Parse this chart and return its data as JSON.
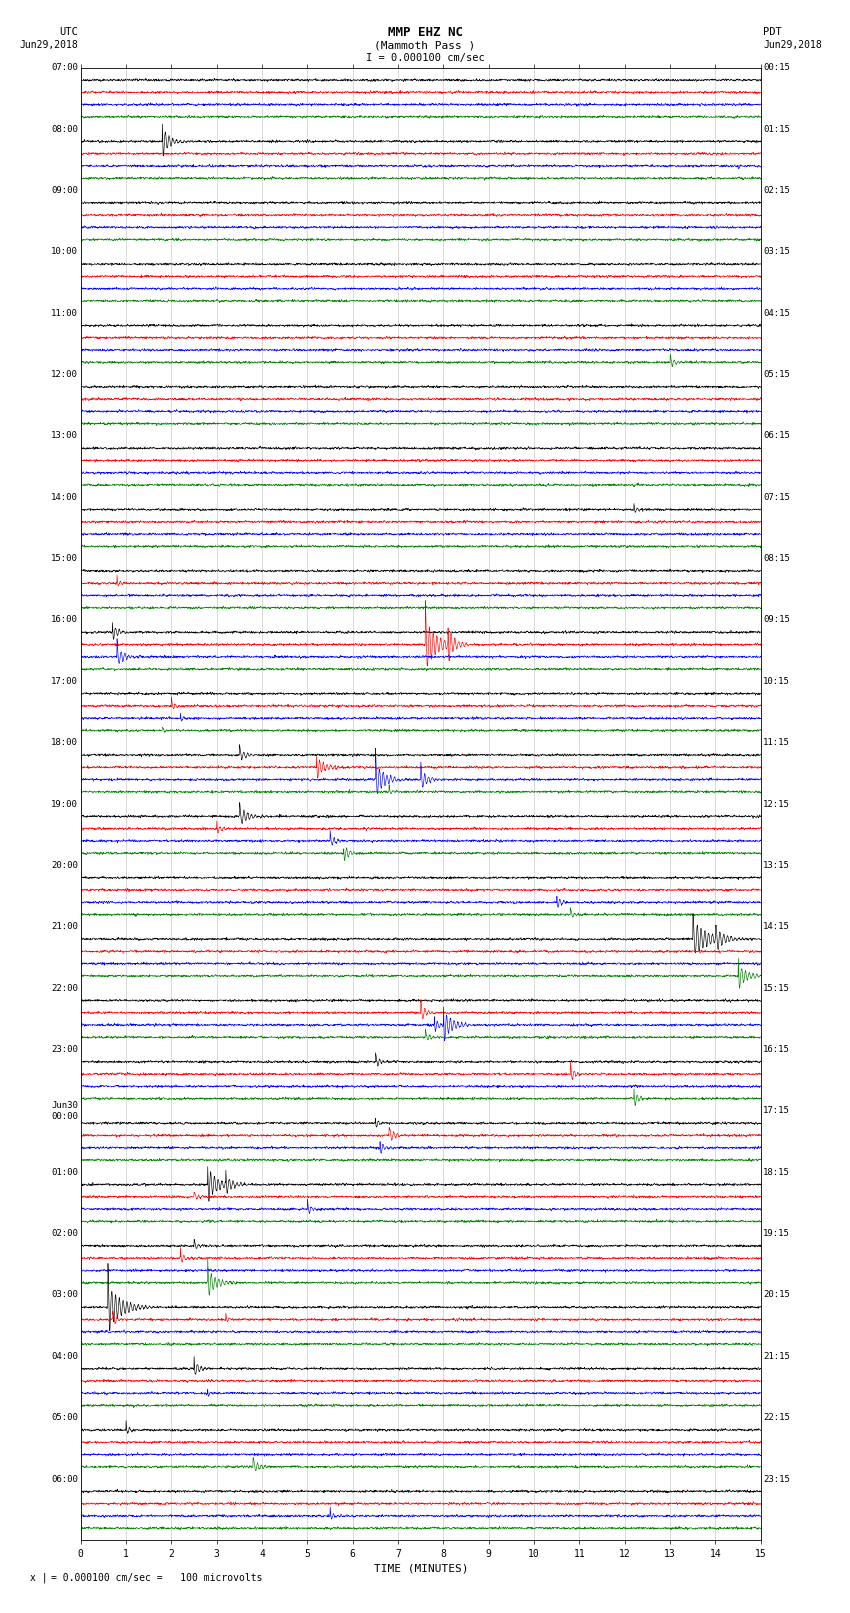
{
  "title_line1": "MMP EHZ NC",
  "title_line2": "(Mammoth Pass )",
  "scale_text": "I = 0.000100 cm/sec",
  "utc_label": "UTC",
  "utc_date": "Jun29,2018",
  "pdt_label": "PDT",
  "pdt_date": "Jun29,2018",
  "left_times_utc": [
    "07:00",
    "08:00",
    "09:00",
    "10:00",
    "11:00",
    "12:00",
    "13:00",
    "14:00",
    "15:00",
    "16:00",
    "17:00",
    "18:00",
    "19:00",
    "20:00",
    "21:00",
    "22:00",
    "23:00",
    "Jun30\n00:00",
    "01:00",
    "02:00",
    "03:00",
    "04:00",
    "05:00",
    "06:00"
  ],
  "right_times_pdt": [
    "00:15",
    "01:15",
    "02:15",
    "03:15",
    "04:15",
    "05:15",
    "06:15",
    "07:15",
    "08:15",
    "09:15",
    "10:15",
    "11:15",
    "12:15",
    "13:15",
    "14:15",
    "15:15",
    "16:15",
    "17:15",
    "18:15",
    "19:15",
    "20:15",
    "21:15",
    "22:15",
    "23:15"
  ],
  "xlabel": "TIME (MINUTES)",
  "footnote": "= 0.000100 cm/sec =   100 microvolts",
  "num_rows": 24,
  "traces_per_row": 4,
  "colors": [
    "black",
    "red",
    "blue",
    "green"
  ],
  "xlim": [
    0,
    15
  ],
  "xticks": [
    0,
    1,
    2,
    3,
    4,
    5,
    6,
    7,
    8,
    9,
    10,
    11,
    12,
    13,
    14,
    15
  ],
  "bg_color": "white",
  "line_width": 0.45,
  "fig_width": 8.5,
  "fig_height": 16.13,
  "events": [
    [
      1,
      0,
      1.8,
      3.0,
      0.15
    ],
    [
      1,
      2,
      14.5,
      0.8,
      0.05
    ],
    [
      4,
      3,
      13.0,
      1.2,
      0.1
    ],
    [
      7,
      0,
      12.2,
      0.9,
      0.08
    ],
    [
      8,
      1,
      0.8,
      1.0,
      0.06
    ],
    [
      9,
      0,
      0.7,
      1.5,
      0.12
    ],
    [
      9,
      1,
      7.6,
      5.0,
      0.25
    ],
    [
      9,
      1,
      8.1,
      3.5,
      0.15
    ],
    [
      9,
      2,
      0.8,
      2.0,
      0.15
    ],
    [
      10,
      1,
      2.0,
      1.0,
      0.08
    ],
    [
      10,
      2,
      2.2,
      0.8,
      0.06
    ],
    [
      10,
      3,
      1.8,
      0.7,
      0.06
    ],
    [
      11,
      0,
      3.5,
      1.5,
      0.12
    ],
    [
      11,
      1,
      5.2,
      2.0,
      0.18
    ],
    [
      11,
      2,
      6.5,
      3.5,
      0.2
    ],
    [
      11,
      2,
      7.5,
      2.0,
      0.15
    ],
    [
      11,
      3,
      6.8,
      0.8,
      0.08
    ],
    [
      12,
      0,
      3.5,
      2.0,
      0.18
    ],
    [
      12,
      1,
      3.0,
      1.0,
      0.1
    ],
    [
      12,
      2,
      5.5,
      1.2,
      0.1
    ],
    [
      12,
      3,
      5.8,
      1.5,
      0.12
    ],
    [
      13,
      2,
      10.5,
      1.2,
      0.1
    ],
    [
      13,
      3,
      10.8,
      1.0,
      0.08
    ],
    [
      14,
      0,
      13.5,
      4.0,
      0.3
    ],
    [
      14,
      0,
      14.0,
      2.0,
      0.15
    ],
    [
      14,
      3,
      14.5,
      2.5,
      0.2
    ],
    [
      15,
      1,
      7.5,
      1.5,
      0.12
    ],
    [
      15,
      2,
      8.0,
      3.0,
      0.2
    ],
    [
      15,
      2,
      7.8,
      1.5,
      0.1
    ],
    [
      15,
      3,
      7.6,
      1.2,
      0.1
    ],
    [
      16,
      0,
      6.5,
      1.2,
      0.1
    ],
    [
      16,
      1,
      10.8,
      1.5,
      0.12
    ],
    [
      16,
      3,
      12.2,
      1.5,
      0.12
    ],
    [
      17,
      0,
      6.5,
      1.0,
      0.08
    ],
    [
      17,
      1,
      6.8,
      1.5,
      0.12
    ],
    [
      17,
      2,
      6.6,
      1.2,
      0.1
    ],
    [
      18,
      0,
      2.8,
      3.0,
      0.25
    ],
    [
      18,
      0,
      3.2,
      1.5,
      0.12
    ],
    [
      18,
      1,
      2.5,
      1.0,
      0.08
    ],
    [
      18,
      2,
      5.0,
      1.2,
      0.1
    ],
    [
      19,
      0,
      2.5,
      1.0,
      0.08
    ],
    [
      19,
      1,
      2.2,
      1.2,
      0.1
    ],
    [
      19,
      3,
      2.8,
      2.5,
      0.2
    ],
    [
      20,
      0,
      0.6,
      4.5,
      0.3
    ],
    [
      20,
      1,
      0.7,
      1.5,
      0.1
    ],
    [
      20,
      1,
      3.2,
      0.8,
      0.06
    ],
    [
      21,
      0,
      2.5,
      1.5,
      0.12
    ],
    [
      21,
      2,
      2.8,
      0.8,
      0.06
    ],
    [
      22,
      0,
      1.0,
      1.0,
      0.08
    ],
    [
      22,
      3,
      3.8,
      1.5,
      0.12
    ],
    [
      23,
      2,
      5.5,
      1.0,
      0.08
    ]
  ]
}
